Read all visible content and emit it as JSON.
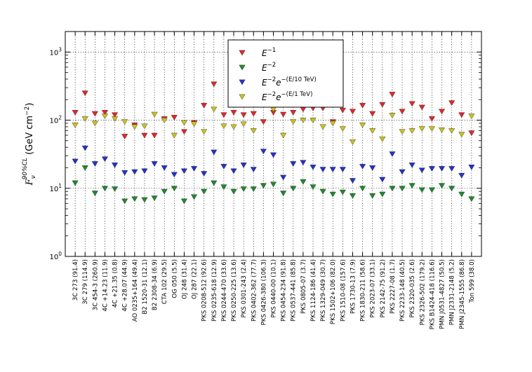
{
  "chart_data": {
    "type": "scatter",
    "title": "",
    "xlabel": "",
    "ylabel": {
      "main": "F",
      "sub": "ν",
      "sup": "90%CL",
      "unit_prefix": " (GeV cm",
      "unit_sup": "−2",
      "unit_suffix": ")"
    },
    "yscale": "log",
    "ylim": [
      1,
      2000
    ],
    "yticks": [
      {
        "base": "10",
        "exp": "0",
        "value": 1
      },
      {
        "base": "10",
        "exp": "1",
        "value": 10
      },
      {
        "base": "10",
        "exp": "2",
        "value": 100
      },
      {
        "base": "10",
        "exp": "3",
        "value": 1000
      }
    ],
    "grid": true,
    "legend_position": "top-center",
    "categories": [
      "3C 273 (91.4)",
      "3C 279 (114.9)",
      "3C 454-3 (260.9)",
      "4C +14.23 (11.9)",
      "4C +21.35 (0.8)",
      "4C +28.07 (44.9)",
      "AO 0235+164 (49.4)",
      "B2 1520-31 (12.1)",
      "B2 2308-34 (6.9)",
      "CTA 102 (29.5)",
      "OG 050 (5.5)",
      "OJ 248 (31.4)",
      "OJ 287 (22.1)",
      "PKS 0208-512 (92.6)",
      "PKS 0235-618 (12.9)",
      "PKS 0244-470 (33.6)",
      "PKS 0250-225 (13.6)",
      "PKS 0301-243 (2.4)",
      "PKS 0402-362 (77.7)",
      "PKS 0426-380 (106.3)",
      "PKS 0440-00 (10.1)",
      "PKS 0454-234 (91.8)",
      "PKS 0537-441 (85.8)",
      "PKS 0805-07 (3.7)",
      "PKS 1124-186 (41.4)",
      "PKS 1329-049 (30.7)",
      "PKS 1502+106 (82.0)",
      "PKS 1510-08 (157.6)",
      "PKS 1730-13 (7.9)",
      "PKS 1830-211 (58.6)",
      "PKS 2023-07 (33.1)",
      "PKS 2142-75 (91.2)",
      "PKS 2227-08 (1.7)",
      "PKS 2233-148 (40.5)",
      "PKS 2320-035 (2.6)",
      "PKS 2326-502 (179.2)",
      "PKS B1424-418 (116.6)",
      "PMN J0531-4827 (50.5)",
      "PMN J2331-2148 (5.2)",
      "PMN J2345-1555 (86.8)",
      "Ton 599 (38.0)"
    ],
    "series": [
      {
        "name": "E^{-1}",
        "legend": {
          "base": "E",
          "exp": "−1"
        },
        "color": "#e3262a",
        "values": [
          130,
          250,
          125,
          130,
          120,
          58,
          85,
          60,
          60,
          105,
          110,
          68,
          92,
          165,
          340,
          120,
          130,
          120,
          125,
          95,
          130,
          122,
          130,
          145,
          150,
          150,
          95,
          140,
          135,
          165,
          125,
          170,
          240,
          135,
          175,
          155,
          105,
          135,
          180,
          120,
          65
        ]
      },
      {
        "name": "E^{-2}",
        "legend": {
          "base": "E",
          "exp": "−2"
        },
        "color": "#1f8a2c",
        "values": [
          12,
          20,
          8.5,
          10,
          9.8,
          6.5,
          7,
          6.8,
          7.2,
          9,
          10,
          6.5,
          7.5,
          9,
          12,
          10.5,
          9,
          9.8,
          9.8,
          11,
          11.5,
          8.5,
          10,
          12.5,
          10.5,
          9,
          8.2,
          8.8,
          7.8,
          10,
          7.8,
          8.2,
          10,
          10,
          11,
          9.5,
          9.5,
          11,
          10,
          8.2,
          7
        ]
      },
      {
        "name": "E^{-2}e^{-(E/10 TeV)}",
        "legend": {
          "base": "E",
          "exp": "−2",
          "mid": "e",
          "exp2": "−(E/10 TeV)"
        },
        "color": "#2432c8",
        "values": [
          25,
          39,
          23,
          27,
          22,
          17,
          17.5,
          18,
          23,
          20,
          16,
          18,
          19.5,
          16.5,
          34,
          21,
          18,
          22,
          19,
          35,
          31,
          14.5,
          23,
          24,
          20.5,
          19,
          19,
          19,
          13,
          21,
          20,
          13.5,
          32,
          17.5,
          22,
          18.5,
          19.5,
          19.5,
          19.5,
          15.5,
          20.5
        ]
      },
      {
        "name": "E^{-2}e^{-(E/1 TeV)}",
        "legend": {
          "base": "E",
          "exp": "−2",
          "mid": "e",
          "exp2": "−(E/1 TeV)"
        },
        "color": "#c8c21e",
        "values": [
          85,
          105,
          90,
          115,
          105,
          95,
          80,
          82,
          122,
          100,
          60,
          92,
          88,
          68,
          145,
          82,
          80,
          88,
          70,
          170,
          145,
          60,
          95,
          100,
          100,
          80,
          90,
          75,
          48,
          85,
          70,
          53,
          118,
          68,
          70,
          75,
          75,
          72,
          70,
          62,
          115
        ]
      }
    ]
  }
}
